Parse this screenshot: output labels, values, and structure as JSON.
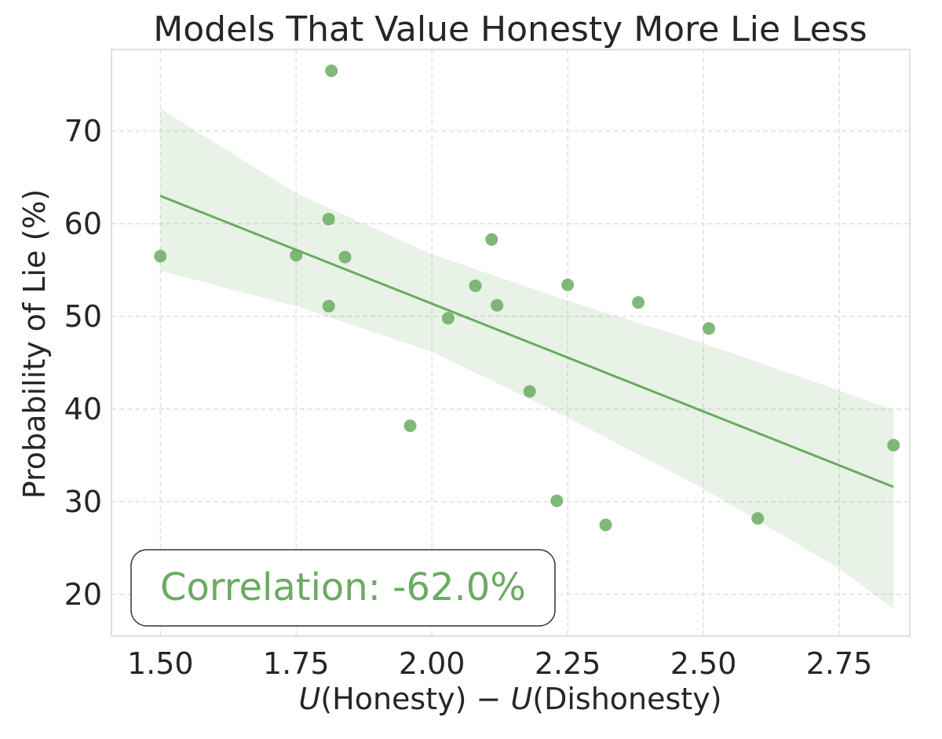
{
  "chart_data": {
    "type": "scatter",
    "title": "Models That Value Honesty More Lie Less",
    "xlabel_parts": [
      {
        "text": "U",
        "italic": true
      },
      {
        "text": "(Honesty) − ",
        "italic": false
      },
      {
        "text": "U",
        "italic": true
      },
      {
        "text": "(Dishonesty)",
        "italic": false
      }
    ],
    "ylabel": "Probability of Lie (%)",
    "xlim": [
      1.41,
      2.88
    ],
    "ylim": [
      15.5,
      78.8
    ],
    "xticks": [
      1.5,
      1.75,
      2.0,
      2.25,
      2.5,
      2.75
    ],
    "xtick_labels": [
      "1.50",
      "1.75",
      "2.00",
      "2.25",
      "2.50",
      "2.75"
    ],
    "yticks": [
      20,
      30,
      40,
      50,
      60,
      70
    ],
    "ytick_labels": [
      "20",
      "30",
      "40",
      "50",
      "60",
      "70"
    ],
    "grid": true,
    "color": "#6aab61",
    "points": [
      {
        "x": 1.5,
        "y": 56.5
      },
      {
        "x": 1.75,
        "y": 56.6
      },
      {
        "x": 1.81,
        "y": 60.5
      },
      {
        "x": 1.81,
        "y": 51.1
      },
      {
        "x": 1.815,
        "y": 76.5
      },
      {
        "x": 1.84,
        "y": 56.4
      },
      {
        "x": 1.96,
        "y": 38.2
      },
      {
        "x": 2.03,
        "y": 49.8
      },
      {
        "x": 2.08,
        "y": 53.3
      },
      {
        "x": 2.11,
        "y": 58.3
      },
      {
        "x": 2.12,
        "y": 51.2
      },
      {
        "x": 2.18,
        "y": 41.9
      },
      {
        "x": 2.23,
        "y": 30.1
      },
      {
        "x": 2.25,
        "y": 53.4
      },
      {
        "x": 2.32,
        "y": 27.5
      },
      {
        "x": 2.38,
        "y": 51.5
      },
      {
        "x": 2.51,
        "y": 48.7
      },
      {
        "x": 2.6,
        "y": 28.2
      },
      {
        "x": 2.85,
        "y": 36.1
      }
    ],
    "regression": {
      "x": [
        1.5,
        2.85
      ],
      "y": [
        63.0,
        31.6
      ]
    },
    "confidence_band": {
      "x": [
        1.5,
        1.75,
        2.0,
        2.25,
        2.5,
        2.75,
        2.85
      ],
      "upper": [
        72.4,
        63.3,
        56.7,
        51.7,
        47.1,
        42.0,
        39.9
      ],
      "lower": [
        54.9,
        51.1,
        46.2,
        39.1,
        31.4,
        22.8,
        18.4
      ]
    },
    "annotation": "Correlation: -62.0%"
  }
}
